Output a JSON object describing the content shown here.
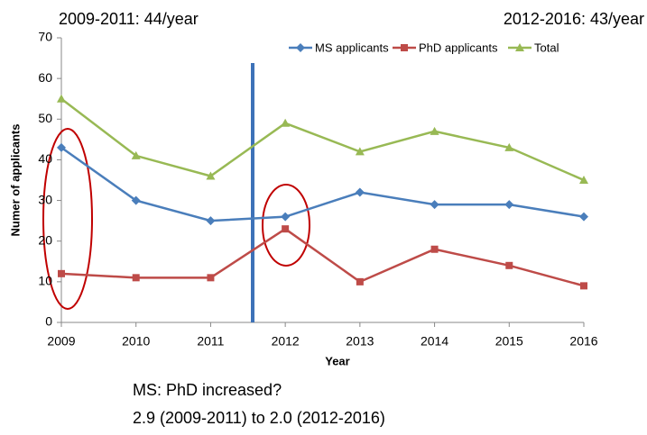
{
  "chart_data": {
    "type": "line",
    "annotations": [
      "2009-2011: 44/year",
      "2012-2016: 43/year",
      "MS: PhD  increased?",
      "2.9 (2009-2011) to 2.0 (2012-2016)"
    ],
    "x_label": "Year",
    "y_label": "Numer of applicants",
    "x": [
      2009,
      2010,
      2011,
      2012,
      2013,
      2014,
      2015,
      2016
    ],
    "series": [
      {
        "name": "MS applicants",
        "color": "#4a7ebb",
        "marker": "diamond",
        "values": [
          43,
          30,
          25,
          26,
          32,
          29,
          29,
          26
        ]
      },
      {
        "name": "PhD applicants",
        "color": "#be4b48",
        "marker": "square",
        "values": [
          12,
          11,
          11,
          23,
          10,
          18,
          14,
          9
        ]
      },
      {
        "name": "Total",
        "color": "#98b954",
        "marker": "triangle",
        "values": [
          55,
          41,
          36,
          49,
          42,
          47,
          43,
          35
        ]
      }
    ],
    "xlim": [
      2009,
      2016
    ],
    "xticks": [
      2009,
      2010,
      2011,
      2012,
      2013,
      2014,
      2015,
      2016
    ],
    "ylim": [
      0,
      70
    ],
    "yticks": [
      0,
      10,
      20,
      30,
      40,
      50,
      60,
      70
    ],
    "grid": false,
    "legend": "upper right"
  }
}
